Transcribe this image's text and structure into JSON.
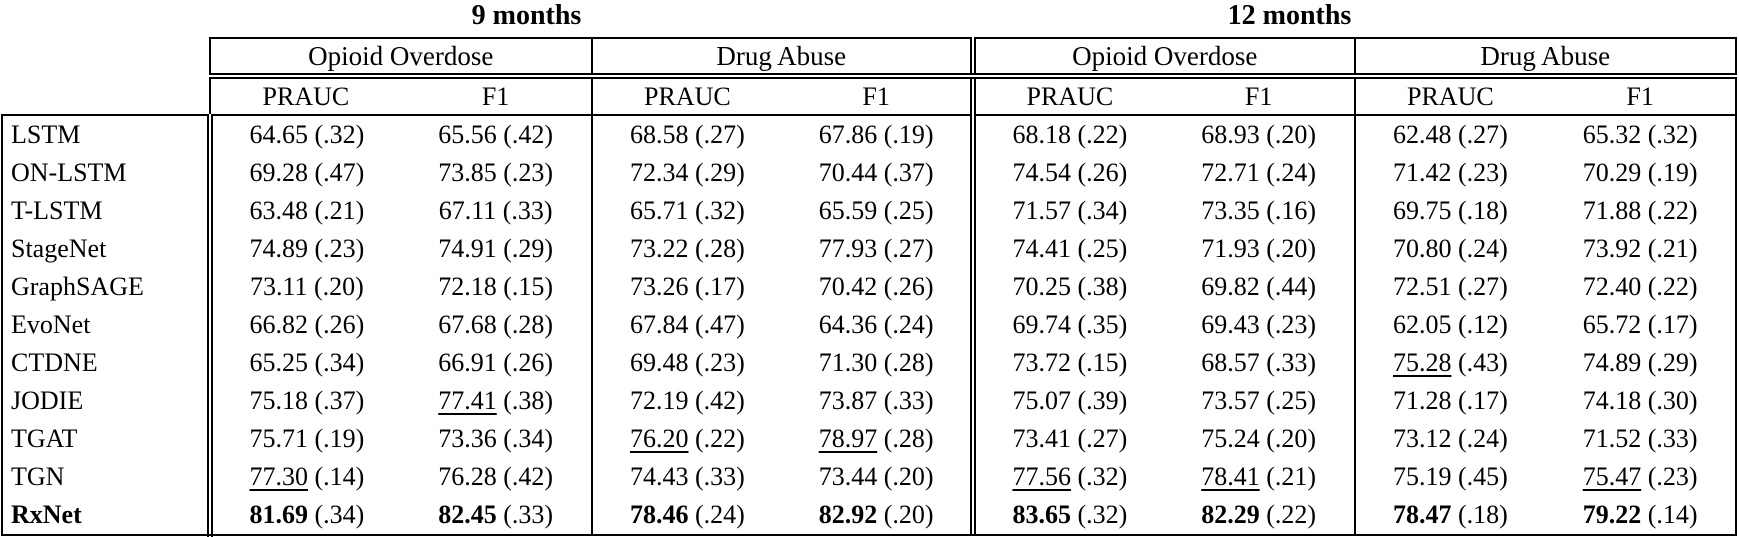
{
  "table": {
    "title_left": "9 months",
    "title_right": "12 months",
    "group_headers": [
      "Opioid Overdose",
      "Drug Abuse",
      "Opioid Overdose",
      "Drug Abuse"
    ],
    "metric_headers": [
      "PRAUC",
      "F1",
      "PRAUC",
      "F1",
      "PRAUC",
      "F1",
      "PRAUC",
      "F1"
    ],
    "rows": [
      {
        "model": "LSTM",
        "emphasis": "normal",
        "cells": [
          {
            "value": "64.65",
            "std": "(.32)",
            "style": "normal"
          },
          {
            "value": "65.56",
            "std": "(.42)",
            "style": "normal"
          },
          {
            "value": "68.58",
            "std": "(.27)",
            "style": "normal"
          },
          {
            "value": "67.86",
            "std": "(.19)",
            "style": "normal"
          },
          {
            "value": "68.18",
            "std": "(.22)",
            "style": "normal"
          },
          {
            "value": "68.93",
            "std": "(.20)",
            "style": "normal"
          },
          {
            "value": "62.48",
            "std": "(.27)",
            "style": "normal"
          },
          {
            "value": "65.32",
            "std": "(.32)",
            "style": "normal"
          }
        ]
      },
      {
        "model": "ON-LSTM",
        "emphasis": "normal",
        "cells": [
          {
            "value": "69.28",
            "std": "(.47)",
            "style": "normal"
          },
          {
            "value": "73.85",
            "std": "(.23)",
            "style": "normal"
          },
          {
            "value": "72.34",
            "std": "(.29)",
            "style": "normal"
          },
          {
            "value": "70.44",
            "std": "(.37)",
            "style": "normal"
          },
          {
            "value": "74.54",
            "std": "(.26)",
            "style": "normal"
          },
          {
            "value": "72.71",
            "std": "(.24)",
            "style": "normal"
          },
          {
            "value": "71.42",
            "std": "(.23)",
            "style": "normal"
          },
          {
            "value": "70.29",
            "std": "(.19)",
            "style": "normal"
          }
        ]
      },
      {
        "model": "T-LSTM",
        "emphasis": "normal",
        "cells": [
          {
            "value": "63.48",
            "std": "(.21)",
            "style": "normal"
          },
          {
            "value": "67.11",
            "std": "(.33)",
            "style": "normal"
          },
          {
            "value": "65.71",
            "std": "(.32)",
            "style": "normal"
          },
          {
            "value": "65.59",
            "std": "(.25)",
            "style": "normal"
          },
          {
            "value": "71.57",
            "std": "(.34)",
            "style": "normal"
          },
          {
            "value": "73.35",
            "std": "(.16)",
            "style": "normal"
          },
          {
            "value": "69.75",
            "std": "(.18)",
            "style": "normal"
          },
          {
            "value": "71.88",
            "std": "(.22)",
            "style": "normal"
          }
        ]
      },
      {
        "model": "StageNet",
        "emphasis": "normal",
        "cells": [
          {
            "value": "74.89",
            "std": "(.23)",
            "style": "normal"
          },
          {
            "value": "74.91",
            "std": "(.29)",
            "style": "normal"
          },
          {
            "value": "73.22",
            "std": "(.28)",
            "style": "normal"
          },
          {
            "value": "77.93",
            "std": "(.27)",
            "style": "normal"
          },
          {
            "value": "74.41",
            "std": "(.25)",
            "style": "normal"
          },
          {
            "value": "71.93",
            "std": "(.20)",
            "style": "normal"
          },
          {
            "value": "70.80",
            "std": "(.24)",
            "style": "normal"
          },
          {
            "value": "73.92",
            "std": "(.21)",
            "style": "normal"
          }
        ]
      },
      {
        "model": "GraphSAGE",
        "emphasis": "normal",
        "cells": [
          {
            "value": "73.11",
            "std": "(.20)",
            "style": "normal"
          },
          {
            "value": "72.18",
            "std": "(.15)",
            "style": "normal"
          },
          {
            "value": "73.26",
            "std": "(.17)",
            "style": "normal"
          },
          {
            "value": "70.42",
            "std": "(.26)",
            "style": "normal"
          },
          {
            "value": "70.25",
            "std": "(.38)",
            "style": "normal"
          },
          {
            "value": "69.82",
            "std": "(.44)",
            "style": "normal"
          },
          {
            "value": "72.51",
            "std": "(.27)",
            "style": "normal"
          },
          {
            "value": "72.40",
            "std": "(.22)",
            "style": "normal"
          }
        ]
      },
      {
        "model": "EvoNet",
        "emphasis": "normal",
        "cells": [
          {
            "value": "66.82",
            "std": "(.26)",
            "style": "normal"
          },
          {
            "value": "67.68",
            "std": "(.28)",
            "style": "normal"
          },
          {
            "value": "67.84",
            "std": "(.47)",
            "style": "normal"
          },
          {
            "value": "64.36",
            "std": "(.24)",
            "style": "normal"
          },
          {
            "value": "69.74",
            "std": "(.35)",
            "style": "normal"
          },
          {
            "value": "69.43",
            "std": "(.23)",
            "style": "normal"
          },
          {
            "value": "62.05",
            "std": "(.12)",
            "style": "normal"
          },
          {
            "value": "65.72",
            "std": "(.17)",
            "style": "normal"
          }
        ]
      },
      {
        "model": "CTDNE",
        "emphasis": "normal",
        "cells": [
          {
            "value": "65.25",
            "std": "(.34)",
            "style": "normal"
          },
          {
            "value": "66.91",
            "std": "(.26)",
            "style": "normal"
          },
          {
            "value": "69.48",
            "std": "(.23)",
            "style": "normal"
          },
          {
            "value": "71.30",
            "std": "(.28)",
            "style": "normal"
          },
          {
            "value": "73.72",
            "std": "(.15)",
            "style": "normal"
          },
          {
            "value": "68.57",
            "std": "(.33)",
            "style": "normal"
          },
          {
            "value": "75.28",
            "std": "(.43)",
            "style": "underline"
          },
          {
            "value": "74.89",
            "std": "(.29)",
            "style": "normal"
          }
        ]
      },
      {
        "model": "JODIE",
        "emphasis": "normal",
        "cells": [
          {
            "value": "75.18",
            "std": "(.37)",
            "style": "normal"
          },
          {
            "value": "77.41",
            "std": "(.38)",
            "style": "underline"
          },
          {
            "value": "72.19",
            "std": "(.42)",
            "style": "normal"
          },
          {
            "value": "73.87",
            "std": "(.33)",
            "style": "normal"
          },
          {
            "value": "75.07",
            "std": "(.39)",
            "style": "normal"
          },
          {
            "value": "73.57",
            "std": "(.25)",
            "style": "normal"
          },
          {
            "value": "71.28",
            "std": "(.17)",
            "style": "normal"
          },
          {
            "value": "74.18",
            "std": "(.30)",
            "style": "normal"
          }
        ]
      },
      {
        "model": "TGAT",
        "emphasis": "normal",
        "cells": [
          {
            "value": "75.71",
            "std": "(.19)",
            "style": "normal"
          },
          {
            "value": "73.36",
            "std": "(.34)",
            "style": "normal"
          },
          {
            "value": "76.20",
            "std": "(.22)",
            "style": "underline"
          },
          {
            "value": "78.97",
            "std": "(.28)",
            "style": "underline"
          },
          {
            "value": "73.41",
            "std": "(.27)",
            "style": "normal"
          },
          {
            "value": "75.24",
            "std": "(.20)",
            "style": "normal"
          },
          {
            "value": "73.12",
            "std": "(.24)",
            "style": "normal"
          },
          {
            "value": "71.52",
            "std": "(.33)",
            "style": "normal"
          }
        ]
      },
      {
        "model": "TGN",
        "emphasis": "normal",
        "cells": [
          {
            "value": "77.30",
            "std": "(.14)",
            "style": "underline"
          },
          {
            "value": "76.28",
            "std": "(.42)",
            "style": "normal"
          },
          {
            "value": "74.43",
            "std": "(.33)",
            "style": "normal"
          },
          {
            "value": "73.44",
            "std": "(.20)",
            "style": "normal"
          },
          {
            "value": "77.56",
            "std": "(.32)",
            "style": "underline"
          },
          {
            "value": "78.41",
            "std": "(.21)",
            "style": "underline"
          },
          {
            "value": "75.19",
            "std": "(.45)",
            "style": "normal"
          },
          {
            "value": "75.47",
            "std": "(.23)",
            "style": "underline"
          }
        ]
      },
      {
        "model": "RxNet",
        "emphasis": "bold",
        "cells": [
          {
            "value": "81.69",
            "std": "(.34)",
            "style": "bold"
          },
          {
            "value": "82.45",
            "std": "(.33)",
            "style": "bold"
          },
          {
            "value": "78.46",
            "std": "(.24)",
            "style": "bold"
          },
          {
            "value": "82.92",
            "std": "(.20)",
            "style": "bold"
          },
          {
            "value": "83.65",
            "std": "(.32)",
            "style": "bold"
          },
          {
            "value": "82.29",
            "std": "(.22)",
            "style": "bold"
          },
          {
            "value": "78.47",
            "std": "(.18)",
            "style": "bold"
          },
          {
            "value": "79.22",
            "std": "(.14)",
            "style": "bold"
          }
        ]
      }
    ]
  }
}
